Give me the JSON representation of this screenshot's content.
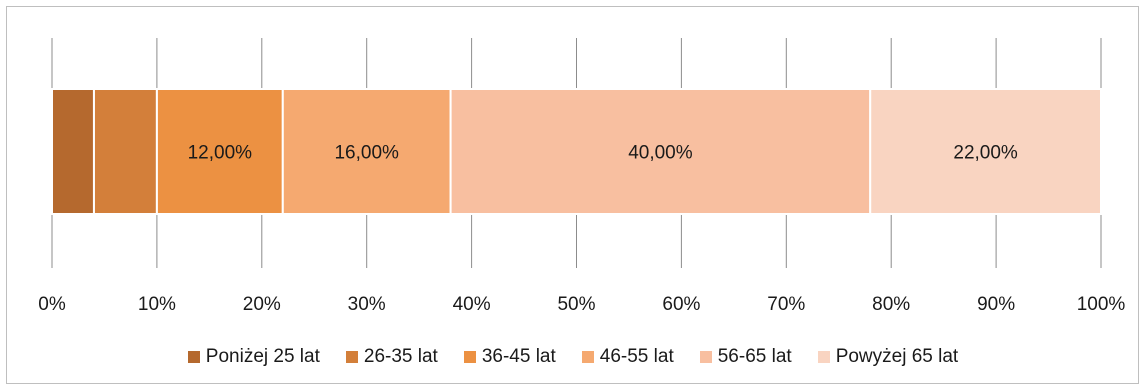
{
  "chart_data": {
    "type": "bar",
    "orientation": "horizontal",
    "stacked": true,
    "x_axis": {
      "min": 0,
      "max": 100,
      "ticks": [
        "0%",
        "10%",
        "20%",
        "30%",
        "40%",
        "50%",
        "60%",
        "70%",
        "80%",
        "90%",
        "100%"
      ]
    },
    "grid": true,
    "legend_position": "bottom",
    "series": [
      {
        "name": "Poniżej 25 lat",
        "value": 4,
        "label": "",
        "color": "#b5692e"
      },
      {
        "name": "26-35 lat",
        "value": 6,
        "label": "",
        "color": "#d37f3a"
      },
      {
        "name": "36-45 lat",
        "value": 12,
        "label": "12,00%",
        "color": "#ec9142"
      },
      {
        "name": "46-55 lat",
        "value": 16,
        "label": "16,00%",
        "color": "#f5a970"
      },
      {
        "name": "56-65 lat",
        "value": 40,
        "label": "40,00%",
        "color": "#f8bfa0"
      },
      {
        "name": "Powyżej 65 lat",
        "value": 22,
        "label": "22,00%",
        "color": "#f9d4c1"
      }
    ]
  }
}
